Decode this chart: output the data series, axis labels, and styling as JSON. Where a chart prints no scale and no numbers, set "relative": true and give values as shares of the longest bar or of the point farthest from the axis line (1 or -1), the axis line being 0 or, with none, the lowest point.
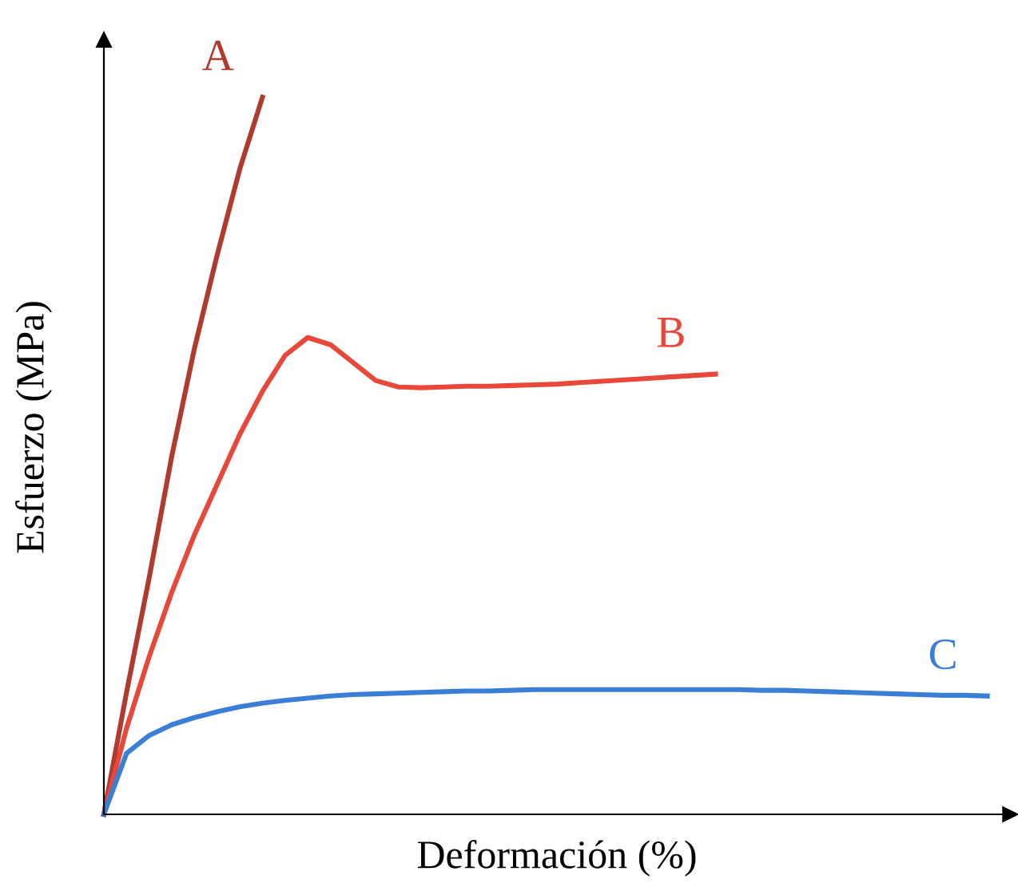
{
  "chart_data": {
    "type": "line",
    "relative": true,
    "xlabel": "Deformación (%)",
    "ylabel": "Esfuerzo (MPa)",
    "marker": "none",
    "line_style": "solid",
    "categories": [
      null,
      null,
      null,
      null,
      null,
      null,
      null,
      null,
      null,
      null,
      null,
      null,
      null,
      null,
      null,
      null,
      null,
      null,
      null,
      null,
      null,
      null,
      null,
      null,
      null,
      null,
      null,
      null,
      null,
      null,
      null,
      null,
      null,
      null,
      null,
      null,
      null,
      null,
      null,
      null,
      null
    ],
    "series": [
      {
        "name": "A",
        "color": "#b03a2e",
        "values": [
          0,
          0.17,
          0.33,
          0.5,
          0.65,
          0.78,
          0.9,
          1.0,
          null,
          null,
          null,
          null,
          null,
          null,
          null,
          null,
          null,
          null,
          null,
          null,
          null,
          null,
          null,
          null,
          null,
          null,
          null,
          null,
          null,
          null,
          null,
          null,
          null,
          null,
          null,
          null,
          null,
          null,
          null,
          null,
          null
        ]
      },
      {
        "name": "B",
        "color": "#e8483a",
        "values": [
          0,
          0.12,
          0.22,
          0.31,
          0.39,
          0.46,
          0.53,
          0.59,
          0.64,
          0.665,
          0.655,
          0.63,
          0.605,
          0.596,
          0.595,
          0.596,
          0.597,
          0.597,
          0.598,
          0.599,
          0.6,
          0.602,
          0.604,
          0.606,
          0.608,
          0.61,
          0.612,
          0.614,
          null,
          null,
          null,
          null,
          null,
          null,
          null,
          null,
          null,
          null,
          null,
          null,
          null
        ]
      },
      {
        "name": "C",
        "color": "#3a7fd5",
        "values": [
          0,
          0.085,
          0.11,
          0.125,
          0.135,
          0.143,
          0.15,
          0.155,
          0.159,
          0.162,
          0.165,
          0.167,
          0.168,
          0.169,
          0.17,
          0.171,
          0.172,
          0.172,
          0.173,
          0.174,
          0.174,
          0.174,
          0.174,
          0.174,
          0.174,
          0.174,
          0.174,
          0.174,
          0.174,
          0.173,
          0.173,
          0.172,
          0.171,
          0.17,
          0.169,
          0.168,
          0.167,
          0.166,
          0.166,
          0.165,
          null
        ]
      }
    ]
  }
}
